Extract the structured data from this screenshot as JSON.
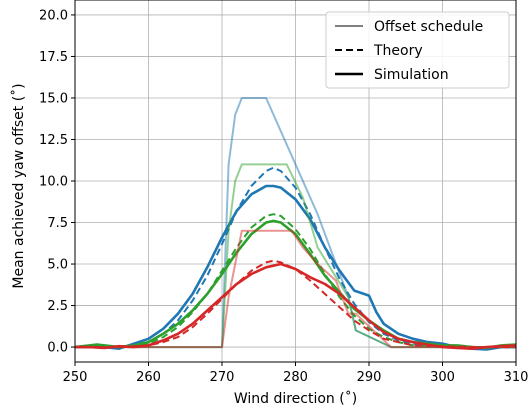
{
  "chart_data": {
    "type": "line",
    "title": "",
    "xlabel": "Wind direction (˚)",
    "ylabel": "Mean achieved yaw offset (˚)",
    "xlim": [
      250,
      310
    ],
    "ylim": [
      -0.9,
      20.9
    ],
    "grid": true,
    "legend_position": "top-right",
    "x_ticks": [
      "250",
      "260",
      "270",
      "280",
      "290",
      "300",
      "310"
    ],
    "y_ticks": [
      "0.0",
      "2.5",
      "5.0",
      "7.5",
      "10.0",
      "12.5",
      "15.0",
      "17.5",
      "20.0"
    ],
    "legend": [
      {
        "label": "Offset schedule",
        "style": "schedule"
      },
      {
        "label": "Theory",
        "style": "theory"
      },
      {
        "label": "Simulation",
        "style": "simulation"
      }
    ],
    "series": [
      {
        "kind": "schedule",
        "color": "#1f77b4",
        "x": [
          250,
          270,
          270.9,
          271.8,
          272.7,
          276,
          283,
          287.2,
          288.2,
          293,
          310
        ],
        "y": [
          0,
          0,
          11,
          14,
          15,
          15,
          8,
          3,
          1,
          0,
          0
        ]
      },
      {
        "kind": "theory",
        "color": "#1f77b4",
        "x": [
          250,
          255,
          258,
          260,
          262,
          264,
          266,
          268,
          270,
          272,
          274,
          276,
          277,
          278,
          280,
          282,
          284,
          286,
          288,
          290,
          292,
          294,
          296,
          300,
          305,
          310
        ],
        "y": [
          0,
          0,
          0.1,
          0.3,
          0.8,
          1.6,
          2.8,
          4.3,
          6.2,
          8.2,
          9.7,
          10.6,
          10.8,
          10.6,
          9.6,
          8.0,
          6.0,
          4.1,
          2.6,
          1.5,
          0.8,
          0.4,
          0.2,
          0.05,
          0,
          0
        ]
      },
      {
        "kind": "simulation",
        "color": "#1f77b4",
        "x": [
          250,
          252,
          254,
          256,
          258,
          260,
          262,
          264,
          266,
          268,
          270,
          272,
          274,
          276,
          277,
          278,
          280,
          282,
          284,
          286,
          288,
          290,
          291,
          292,
          294,
          296,
          298,
          300,
          302,
          304,
          306,
          308,
          310
        ],
        "y": [
          0,
          0,
          0,
          -0.1,
          0.2,
          0.5,
          1.1,
          2.0,
          3.2,
          4.8,
          6.6,
          8.2,
          9.2,
          9.7,
          9.7,
          9.6,
          8.9,
          7.7,
          6.0,
          4.6,
          3.4,
          3.1,
          2.1,
          1.4,
          0.8,
          0.5,
          0.3,
          0.2,
          0.0,
          -0.1,
          -0.15,
          0.0,
          0.0
        ]
      },
      {
        "kind": "schedule",
        "color": "#2ca02c",
        "x": [
          250,
          270,
          270.9,
          271.8,
          272.7,
          278.8,
          281,
          283,
          287.2,
          288.2,
          293,
          310
        ],
        "y": [
          0,
          0,
          7,
          10,
          11,
          11,
          9,
          6,
          3,
          1,
          0,
          0
        ]
      },
      {
        "kind": "theory",
        "color": "#2ca02c",
        "x": [
          250,
          255,
          258,
          260,
          262,
          264,
          266,
          268,
          270,
          272,
          274,
          276,
          277,
          278,
          280,
          282,
          284,
          286,
          288,
          290,
          292,
          294,
          296,
          300,
          305,
          310
        ],
        "y": [
          0,
          0,
          0.05,
          0.2,
          0.6,
          1.2,
          2.1,
          3.2,
          4.6,
          6.0,
          7.2,
          7.9,
          8.0,
          7.9,
          7.1,
          5.9,
          4.4,
          3.0,
          1.9,
          1.1,
          0.6,
          0.3,
          0.1,
          0.05,
          0,
          0
        ]
      },
      {
        "kind": "simulation",
        "color": "#2ca02c",
        "x": [
          250,
          253,
          256,
          258,
          260,
          262,
          264,
          266,
          268,
          270,
          272,
          274,
          276,
          277,
          278,
          280,
          282,
          284,
          286,
          288,
          290,
          292,
          294,
          296,
          298,
          300,
          302,
          304,
          306,
          308,
          310
        ],
        "y": [
          0,
          0.15,
          0,
          0.1,
          0.3,
          0.8,
          1.4,
          2.2,
          3.2,
          4.4,
          5.7,
          6.8,
          7.5,
          7.6,
          7.5,
          6.8,
          5.6,
          4.3,
          3.3,
          2.3,
          1.6,
          1.0,
          0.5,
          0.3,
          0.2,
          0.1,
          0.1,
          0.0,
          -0.05,
          0.1,
          0.15
        ]
      },
      {
        "kind": "schedule",
        "color": "#d62728",
        "x": [
          250,
          270,
          270.9,
          271.8,
          272.7,
          279.5,
          281,
          283,
          285.5,
          287.2,
          288.2,
          293,
          310
        ],
        "y": [
          0,
          0,
          3,
          5,
          7,
          7,
          6,
          5,
          4,
          2,
          2,
          0,
          0
        ]
      },
      {
        "kind": "theory",
        "color": "#d62728",
        "x": [
          250,
          256,
          260,
          262,
          264,
          266,
          268,
          270,
          272,
          274,
          276,
          277,
          278,
          280,
          282,
          284,
          286,
          288,
          290,
          292,
          294,
          296,
          300,
          305,
          310
        ],
        "y": [
          0,
          0,
          0.1,
          0.3,
          0.6,
          1.2,
          2.0,
          2.9,
          3.8,
          4.6,
          5.1,
          5.2,
          5.1,
          4.7,
          4.0,
          3.2,
          2.4,
          1.6,
          1.0,
          0.5,
          0.3,
          0.1,
          0.05,
          0,
          0
        ]
      },
      {
        "kind": "simulation",
        "color": "#d62728",
        "x": [
          250,
          252,
          254,
          256,
          258,
          260,
          262,
          264,
          266,
          268,
          270,
          272,
          274,
          276,
          278,
          280,
          282,
          284,
          286,
          288,
          290,
          292,
          294,
          296,
          298,
          300,
          302,
          304,
          306,
          308,
          310
        ],
        "y": [
          0,
          0,
          -0.05,
          0.05,
          0,
          0.1,
          0.4,
          0.8,
          1.4,
          2.2,
          3.0,
          3.8,
          4.4,
          4.8,
          5.0,
          4.7,
          4.2,
          3.8,
          3.2,
          2.4,
          1.6,
          0.9,
          0.5,
          0.3,
          0.15,
          0.0,
          -0.05,
          -0.1,
          0.0,
          0.05,
          0.1
        ]
      }
    ]
  }
}
